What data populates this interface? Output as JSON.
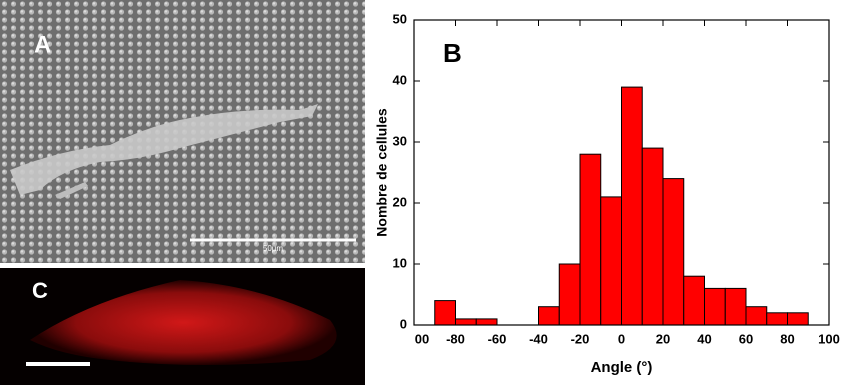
{
  "panels": {
    "a_label": "A",
    "scale_text": "50µm",
    "c_label": "C"
  },
  "chart_data": {
    "type": "histogram",
    "panel_label": "B",
    "xlabel": "Angle (°)",
    "ylabel": "Nombre de cellules",
    "bins": [
      -90,
      -80,
      -70,
      -60,
      -50,
      -40,
      -30,
      -20,
      -10,
      0,
      10,
      20,
      30,
      40,
      50,
      60,
      70,
      80,
      90
    ],
    "values": [
      4,
      1,
      1,
      0,
      0,
      3,
      10,
      28,
      21,
      39,
      29,
      24,
      8,
      6,
      6,
      3,
      2,
      2
    ],
    "color": "#ff0000",
    "xlim": [
      -100,
      100
    ],
    "xticks": [
      {
        "value": -100,
        "label": "00"
      },
      -80,
      -60,
      -40,
      -20,
      0,
      20,
      40,
      60,
      80,
      100
    ],
    "ylim": [
      0,
      50
    ],
    "yticks": [
      0,
      10,
      20,
      30,
      40,
      50
    ]
  }
}
